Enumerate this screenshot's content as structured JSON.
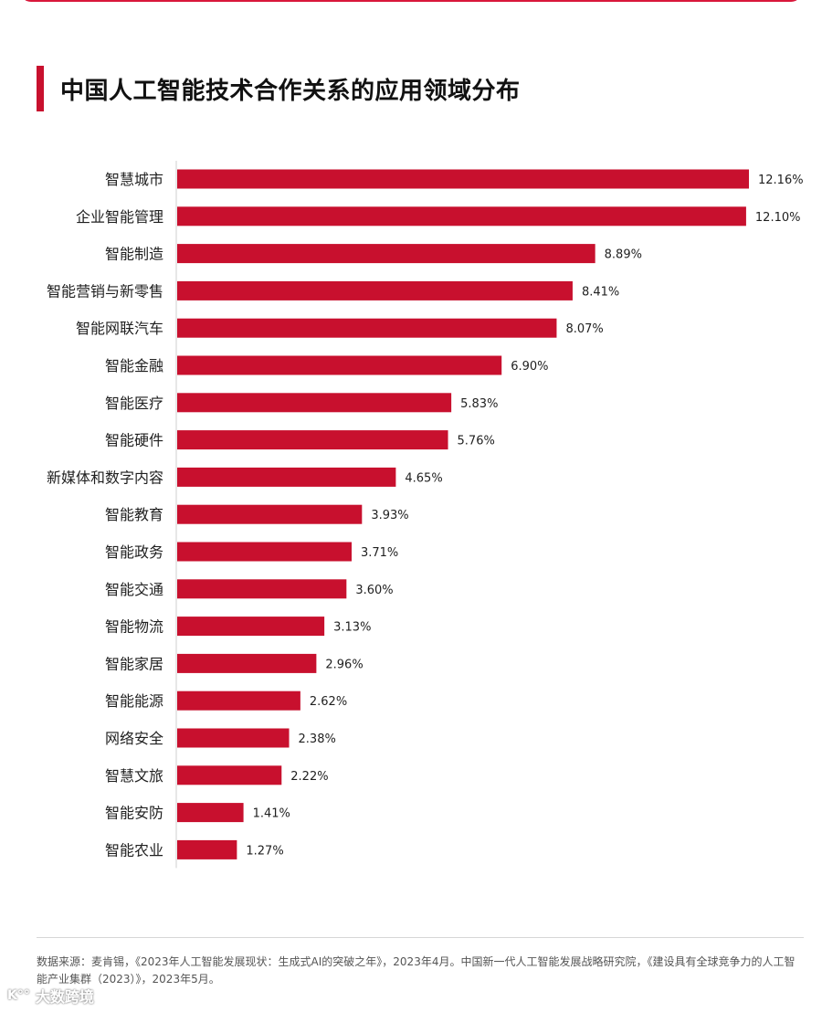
{
  "title": "中国人工智能技术合作关系的应用领域分布",
  "chart_data": {
    "type": "bar",
    "orientation": "horizontal",
    "categories": [
      "智慧城市",
      "企业智能管理",
      "智能制造",
      "智能营销与新零售",
      "智能网联汽车",
      "智能金融",
      "智能医疗",
      "智能硬件",
      "新媒体和数字内容",
      "智能教育",
      "智能政务",
      "智能交通",
      "智能物流",
      "智能家居",
      "智能能源",
      "网络安全",
      "智慧文旅",
      "智能安防",
      "智能农业"
    ],
    "values": [
      12.16,
      12.1,
      8.89,
      8.41,
      8.07,
      6.9,
      5.83,
      5.76,
      4.65,
      3.93,
      3.71,
      3.6,
      3.13,
      2.96,
      2.62,
      2.38,
      2.22,
      1.41,
      1.27
    ],
    "value_labels": [
      "12.16%",
      "12.10%",
      "8.89%",
      "8.41%",
      "8.07%",
      "6.90%",
      "5.83%",
      "5.76%",
      "4.65%",
      "3.93%",
      "3.71%",
      "3.60%",
      "3.13%",
      "2.96%",
      "2.62%",
      "2.38%",
      "2.22%",
      "1.41%",
      "1.27%"
    ],
    "unit": "%",
    "bar_color": "#c8102e",
    "xlim": [
      0,
      12.16
    ],
    "grid": false
  },
  "source": "数据来源：麦肯锡，《2023年人工智能发展现状：生成式AI的突破之年》，2023年4月。中国新一代人工智能发展战略研究院，《建设具有全球竞争力的人工智能产业集群（2023）》，2023年5月。",
  "watermark": "大数跨境",
  "watermark_logo": "K°°"
}
